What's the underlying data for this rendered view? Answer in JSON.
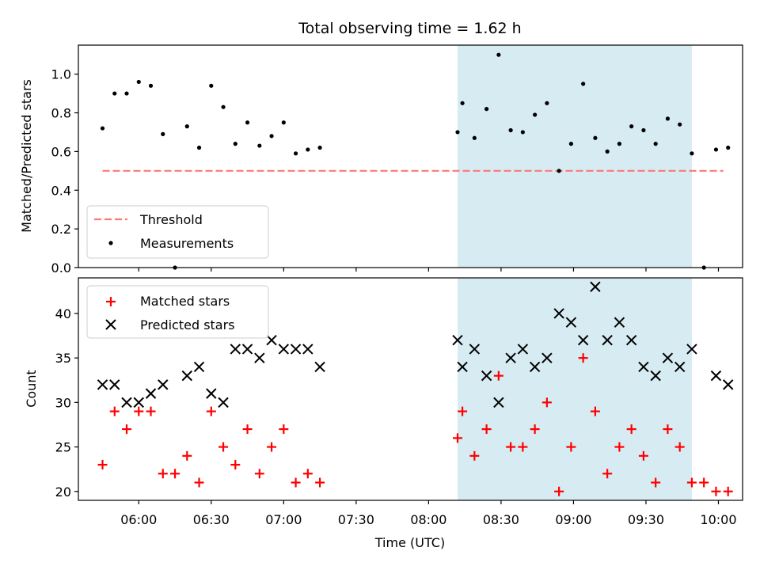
{
  "chart_data": [
    {
      "type": "scatter",
      "title": "Total observing time = 1.62 h",
      "xlabel": "",
      "ylabel": "Matched/Predicted stars",
      "xlim": [
        "05:35",
        "10:10"
      ],
      "ylim": [
        0,
        1.15
      ],
      "yticks": [
        "0.0",
        "0.2",
        "0.4",
        "0.6",
        "0.8",
        "1.0"
      ],
      "shaded_region": [
        "08:12",
        "09:49"
      ],
      "legend_position": "lower-left",
      "series": [
        {
          "name": "Threshold",
          "style": "dashed-line",
          "x": [
            "05:45",
            "10:02"
          ],
          "y": [
            0.5,
            0.5
          ]
        },
        {
          "name": "Measurements",
          "style": "dot",
          "x": [
            "05:45",
            "05:50",
            "05:55",
            "06:00",
            "06:05",
            "06:10",
            "06:15",
            "06:20",
            "06:25",
            "06:30",
            "06:35",
            "06:40",
            "06:45",
            "06:50",
            "06:55",
            "07:00",
            "07:05",
            "07:10",
            "07:15",
            "08:12",
            "08:14",
            "08:19",
            "08:24",
            "08:29",
            "08:34",
            "08:39",
            "08:44",
            "08:49",
            "08:54",
            "08:59",
            "09:04",
            "09:09",
            "09:14",
            "09:19",
            "09:24",
            "09:29",
            "09:34",
            "09:39",
            "09:44",
            "09:49",
            "09:54",
            "09:59",
            "10:04"
          ],
          "y": [
            0.72,
            0.9,
            0.9,
            0.96,
            0.94,
            0.69,
            0.0,
            0.73,
            0.62,
            0.94,
            0.83,
            0.64,
            0.75,
            0.63,
            0.68,
            0.75,
            0.59,
            0.61,
            0.62,
            0.7,
            0.85,
            0.67,
            0.82,
            1.1,
            0.71,
            0.7,
            0.79,
            0.85,
            0.5,
            0.64,
            0.95,
            0.67,
            0.6,
            0.64,
            0.73,
            0.71,
            0.64,
            0.77,
            0.74,
            0.59,
            0.0,
            0.61,
            0.62
          ]
        }
      ]
    },
    {
      "type": "scatter",
      "title": "",
      "xlabel": "Time (UTC)",
      "ylabel": "Count",
      "xlim": [
        "05:35",
        "10:10"
      ],
      "ylim": [
        19,
        44
      ],
      "yticks": [
        "20",
        "25",
        "30",
        "35",
        "40"
      ],
      "xticks": [
        "06:00",
        "06:30",
        "07:00",
        "07:30",
        "08:00",
        "08:30",
        "09:00",
        "09:30",
        "10:00"
      ],
      "shaded_region": [
        "08:12",
        "09:49"
      ],
      "legend_position": "upper-left",
      "series": [
        {
          "name": "Matched stars",
          "style": "plus",
          "color": "#ff0000",
          "x": [
            "05:45",
            "05:50",
            "05:55",
            "06:00",
            "06:05",
            "06:10",
            "06:15",
            "06:20",
            "06:25",
            "06:30",
            "06:35",
            "06:40",
            "06:45",
            "06:50",
            "06:55",
            "07:00",
            "07:05",
            "07:10",
            "07:15",
            "08:12",
            "08:14",
            "08:19",
            "08:24",
            "08:29",
            "08:34",
            "08:39",
            "08:44",
            "08:49",
            "08:54",
            "08:59",
            "09:04",
            "09:09",
            "09:14",
            "09:19",
            "09:24",
            "09:29",
            "09:34",
            "09:39",
            "09:44",
            "09:49",
            "09:54",
            "09:59",
            "10:04"
          ],
          "y": [
            23,
            29,
            27,
            29,
            29,
            22,
            22,
            24,
            21,
            29,
            25,
            23,
            27,
            22,
            25,
            27,
            21,
            22,
            21,
            26,
            29,
            24,
            27,
            33,
            25,
            25,
            27,
            30,
            20,
            25,
            35,
            29,
            22,
            25,
            27,
            24,
            21,
            27,
            25,
            21,
            21,
            20,
            20
          ]
        },
        {
          "name": "Predicted stars",
          "style": "x",
          "color": "#000000",
          "x": [
            "05:45",
            "05:50",
            "05:55",
            "06:00",
            "06:05",
            "06:10",
            "06:20",
            "06:25",
            "06:30",
            "06:35",
            "06:40",
            "06:45",
            "06:50",
            "06:55",
            "07:00",
            "07:05",
            "07:10",
            "07:15",
            "08:12",
            "08:14",
            "08:19",
            "08:24",
            "08:29",
            "08:34",
            "08:39",
            "08:44",
            "08:49",
            "08:54",
            "08:59",
            "09:04",
            "09:09",
            "09:14",
            "09:19",
            "09:24",
            "09:29",
            "09:34",
            "09:39",
            "09:44",
            "09:49",
            "09:59",
            "10:04"
          ],
          "y": [
            32,
            32,
            30,
            30,
            31,
            32,
            33,
            34,
            31,
            30,
            36,
            36,
            35,
            37,
            36,
            36,
            36,
            34,
            37,
            34,
            36,
            33,
            30,
            35,
            36,
            34,
            35,
            40,
            39,
            37,
            43,
            37,
            39,
            37,
            34,
            33,
            35,
            34,
            36,
            33,
            32
          ]
        }
      ]
    }
  ]
}
